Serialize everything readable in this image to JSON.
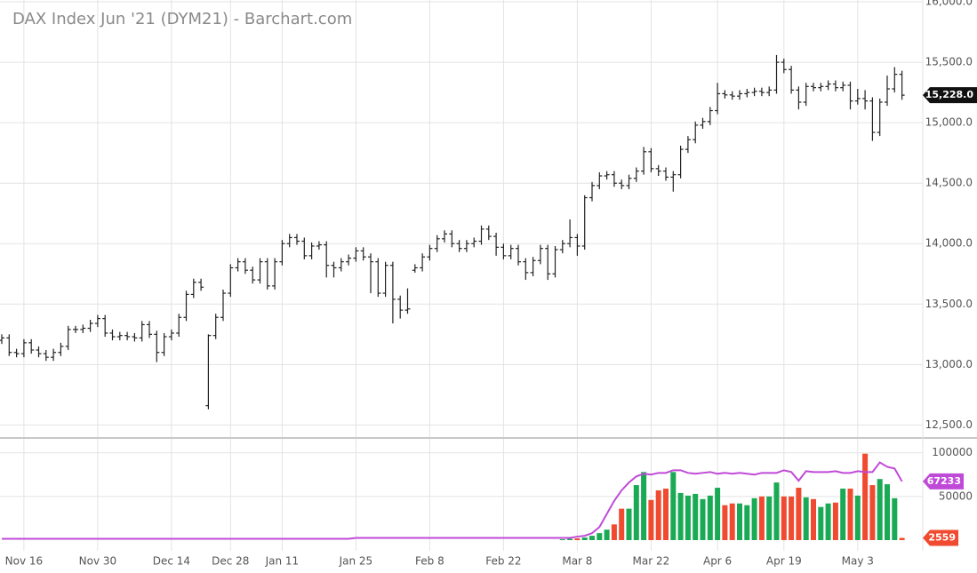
{
  "chart_data": [
    {
      "type": "ohlc",
      "title": "DAX Index Jun '21 (DYM21) - Barchart.com",
      "color": "#222222",
      "categories": [
        null,
        null,
        null,
        "Nov 16",
        null,
        null,
        null,
        null,
        null,
        null,
        null,
        null,
        null,
        "Nov 30",
        null,
        null,
        null,
        null,
        null,
        null,
        null,
        null,
        null,
        "Dec 14",
        null,
        null,
        null,
        null,
        null,
        null,
        null,
        "Dec 28",
        null,
        null,
        null,
        null,
        null,
        null,
        "Jan 11",
        null,
        null,
        null,
        null,
        null,
        null,
        null,
        null,
        null,
        "Jan 25",
        null,
        null,
        null,
        null,
        null,
        null,
        null,
        null,
        null,
        "Feb 8",
        null,
        null,
        null,
        null,
        null,
        null,
        null,
        null,
        null,
        "Feb 22",
        null,
        null,
        null,
        null,
        null,
        null,
        null,
        null,
        null,
        "Mar 8",
        null,
        null,
        null,
        null,
        null,
        null,
        null,
        null,
        null,
        "Mar 22",
        null,
        null,
        null,
        null,
        null,
        null,
        null,
        null,
        "Apr 6",
        null,
        null,
        null,
        null,
        null,
        null,
        null,
        null,
        "Apr 19",
        null,
        null,
        null,
        null,
        null,
        null,
        null,
        null,
        null,
        "May 3",
        null,
        null,
        null,
        null,
        null,
        null
      ],
      "open": [
        13200,
        13220,
        13100,
        13090,
        13180,
        13120,
        13090,
        13060,
        13100,
        13150,
        13290,
        13290,
        13300,
        13340,
        13380,
        13260,
        13230,
        13240,
        13230,
        13220,
        13330,
        13250,
        13100,
        13230,
        13260,
        13390,
        13580,
        13680,
        12660,
        13240,
        13390,
        13590,
        13800,
        13850,
        13780,
        13700,
        13850,
        13650,
        13850,
        14000,
        14050,
        14020,
        13900,
        13980,
        13990,
        13820,
        13800,
        13850,
        13880,
        13940,
        13890,
        13850,
        13590,
        13820,
        13540,
        13450,
        13780,
        13800,
        13890,
        13960,
        14040,
        14080,
        14000,
        13960,
        14000,
        14020,
        14120,
        14060,
        13970,
        13900,
        13960,
        13850,
        13760,
        13860,
        13960,
        13750,
        13950,
        14000,
        14050,
        13980,
        14380,
        14480,
        14560,
        14570,
        14500,
        14480,
        14540,
        14600,
        14760,
        14620,
        14600,
        14550,
        14570,
        14780,
        14860,
        14980,
        15010,
        15100,
        15240,
        15230,
        15220,
        15240,
        15250,
        15260,
        15250,
        15270,
        15500,
        15440,
        15270,
        15170,
        15300,
        15290,
        15300,
        15320,
        15290,
        15310,
        15180,
        15200,
        15180,
        14920,
        15170,
        15280,
        15400
      ],
      "high": [
        13250,
        13250,
        13130,
        13210,
        13210,
        13150,
        13120,
        13130,
        13180,
        13320,
        13320,
        13330,
        13370,
        13410,
        13410,
        13290,
        13270,
        13270,
        13260,
        13360,
        13360,
        13280,
        13260,
        13290,
        13420,
        13610,
        13710,
        13710,
        13250,
        13420,
        13620,
        13830,
        13880,
        13880,
        13810,
        13880,
        13880,
        13880,
        14030,
        14080,
        14080,
        14050,
        14010,
        14020,
        14020,
        13850,
        13880,
        13910,
        13970,
        13970,
        13920,
        13880,
        13850,
        13850,
        13570,
        13630,
        13830,
        13920,
        13990,
        14070,
        14110,
        14110,
        14030,
        14030,
        14050,
        14150,
        14150,
        14090,
        14000,
        13990,
        13990,
        13880,
        13890,
        13990,
        13990,
        13980,
        14030,
        14200,
        14080,
        14400,
        14510,
        14590,
        14600,
        14600,
        14530,
        14570,
        14630,
        14800,
        14790,
        14650,
        14630,
        14600,
        14810,
        14890,
        15010,
        15040,
        15130,
        15330,
        15270,
        15260,
        15270,
        15280,
        15290,
        15290,
        15300,
        15560,
        15530,
        15470,
        15300,
        15330,
        15330,
        15330,
        15350,
        15350,
        15340,
        15340,
        15280,
        15270,
        15210,
        15200,
        15390,
        15460,
        15430
      ],
      "low": [
        13170,
        13070,
        13060,
        13060,
        13090,
        13060,
        13030,
        13030,
        13070,
        13120,
        13260,
        13260,
        13270,
        13310,
        13230,
        13200,
        13200,
        13200,
        13190,
        13190,
        13220,
        13020,
        13070,
        13200,
        13230,
        13360,
        13550,
        13610,
        12630,
        13210,
        13360,
        13560,
        13770,
        13750,
        13670,
        13670,
        13620,
        13620,
        13820,
        13970,
        13990,
        13870,
        13870,
        13950,
        13720,
        13720,
        13770,
        13820,
        13850,
        13860,
        13590,
        13560,
        13560,
        13340,
        13380,
        13420,
        13760,
        13770,
        13860,
        13930,
        14010,
        13970,
        13930,
        13930,
        13970,
        13990,
        14030,
        13900,
        13870,
        13870,
        13820,
        13700,
        13730,
        13830,
        13700,
        13720,
        13920,
        13970,
        13900,
        13950,
        14350,
        14450,
        14530,
        14470,
        14450,
        14450,
        14510,
        14570,
        14590,
        14560,
        14520,
        14430,
        14540,
        14750,
        14830,
        14950,
        14980,
        15070,
        15200,
        15190,
        15190,
        15210,
        15220,
        15220,
        15220,
        15240,
        15410,
        15240,
        15110,
        15140,
        15260,
        15260,
        15270,
        15260,
        15260,
        15110,
        15150,
        15110,
        14850,
        14890,
        15140,
        15250,
        15190
      ],
      "close": [
        13220,
        13100,
        13090,
        13180,
        13120,
        13090,
        13060,
        13100,
        13150,
        13290,
        13290,
        13300,
        13340,
        13380,
        13260,
        13230,
        13240,
        13230,
        13220,
        13330,
        13250,
        13100,
        13230,
        13260,
        13390,
        13580,
        13680,
        13640,
        13240,
        13390,
        13590,
        13800,
        13850,
        13780,
        13700,
        13850,
        13650,
        13850,
        14000,
        14050,
        14020,
        13900,
        13980,
        13990,
        13820,
        13800,
        13850,
        13880,
        13940,
        13890,
        13850,
        13590,
        13820,
        13540,
        13450,
        13460,
        13800,
        13890,
        13960,
        14040,
        14080,
        14000,
        13960,
        14000,
        14020,
        14120,
        14060,
        13970,
        13900,
        13960,
        13850,
        13760,
        13860,
        13960,
        13750,
        13950,
        14000,
        14050,
        13980,
        14380,
        14480,
        14560,
        14570,
        14500,
        14480,
        14540,
        14600,
        14760,
        14620,
        14600,
        14550,
        14570,
        14780,
        14860,
        14980,
        15010,
        15100,
        15240,
        15230,
        15220,
        15240,
        15250,
        15260,
        15250,
        15270,
        15500,
        15440,
        15270,
        15170,
        15300,
        15290,
        15300,
        15320,
        15290,
        15310,
        15180,
        15200,
        15180,
        14920,
        15170,
        15280,
        15400,
        15228
      ],
      "last_price": {
        "value": 15228,
        "label": "15,228.0"
      },
      "ylim": [
        12400,
        16015
      ],
      "yticks": [
        {
          "value": 12500,
          "label": "12,500.0"
        },
        {
          "value": 13000,
          "label": "13,000.0"
        },
        {
          "value": 13500,
          "label": "13,500.0"
        },
        {
          "value": 14000,
          "label": "14,000.0"
        },
        {
          "value": 14500,
          "label": "14,500.0"
        },
        {
          "value": 15000,
          "label": "15,000.0"
        },
        {
          "value": 15500,
          "label": "15,500.0"
        },
        {
          "value": 16000,
          "label": "16,000.0"
        }
      ],
      "grid": true
    },
    {
      "type": "bar",
      "series": [
        {
          "type": "bar",
          "up_color": "#1aaa55",
          "down_color": "#f04a30",
          "values": [
            0,
            0,
            0,
            0,
            0,
            0,
            0,
            0,
            0,
            0,
            0,
            0,
            0,
            0,
            0,
            0,
            0,
            0,
            0,
            0,
            0,
            0,
            0,
            0,
            0,
            0,
            0,
            0,
            0,
            0,
            0,
            0,
            0,
            0,
            0,
            0,
            0,
            0,
            0,
            0,
            0,
            0,
            0,
            0,
            0,
            0,
            0,
            0,
            0,
            0,
            0,
            0,
            0,
            0,
            0,
            0,
            0,
            0,
            0,
            0,
            0,
            0,
            0,
            0,
            0,
            0,
            0,
            0,
            0,
            0,
            0,
            0,
            0,
            0,
            0,
            0,
            1000,
            1500,
            2000,
            3000,
            5000,
            8000,
            12000,
            18000,
            36000,
            36000,
            63000,
            78000,
            46000,
            57000,
            59000,
            78000,
            54000,
            51000,
            53000,
            47000,
            51000,
            60000,
            40000,
            42000,
            42000,
            40000,
            48000,
            50000,
            50000,
            66000,
            50000,
            50000,
            60000,
            49000,
            47000,
            38000,
            42000,
            43000,
            59000,
            59000,
            51000,
            99000,
            63000,
            70000,
            64000,
            48000,
            2559
          ]
        },
        {
          "type": "line",
          "color": "#c04ad8",
          "values": [
            1500,
            1500,
            1500,
            1500,
            1500,
            1500,
            1500,
            1500,
            1500,
            1500,
            1500,
            1500,
            1500,
            1500,
            1500,
            1500,
            1500,
            1500,
            1500,
            1500,
            1500,
            1500,
            1500,
            1500,
            1500,
            1500,
            1500,
            1500,
            1500,
            1500,
            1500,
            1500,
            1500,
            1500,
            1500,
            1500,
            1500,
            1500,
            1500,
            1500,
            1500,
            1500,
            1500,
            1500,
            1500,
            1500,
            1500,
            1500,
            2500,
            2500,
            2500,
            2500,
            2500,
            2500,
            2500,
            2500,
            2500,
            2500,
            2500,
            2500,
            2500,
            2500,
            2500,
            2500,
            2500,
            2500,
            2500,
            2500,
            2500,
            2500,
            2500,
            2500,
            2500,
            2500,
            2500,
            2500,
            2500,
            2500,
            4000,
            5000,
            8000,
            15000,
            30000,
            45000,
            57000,
            66000,
            73000,
            76000,
            75000,
            77000,
            77000,
            80000,
            80000,
            77000,
            76000,
            77000,
            78000,
            76000,
            77000,
            76000,
            77000,
            76000,
            75000,
            77000,
            77000,
            77000,
            80000,
            78000,
            68000,
            79000,
            78000,
            78000,
            78000,
            79000,
            77000,
            77000,
            79000,
            78000,
            78000,
            89000,
            84000,
            82000,
            67233
          ]
        }
      ],
      "ylim": [
        0,
        117000
      ],
      "yticks": [
        50000,
        100000
      ],
      "grid": true
    }
  ]
}
